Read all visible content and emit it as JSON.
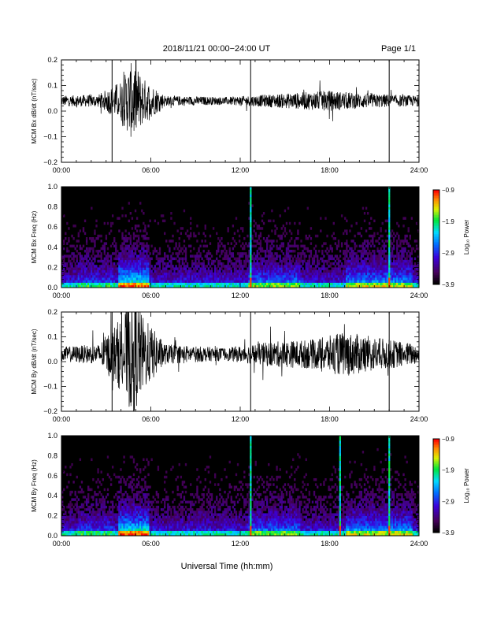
{
  "header": {
    "title": "2018/11/21  00:00−24:00 UT",
    "page": "Page 1/1"
  },
  "footer": {
    "xlabel": "Universal Time (hh:mm)"
  },
  "chart_data": [
    {
      "type": "line",
      "ylabel": "MCM Bx dB/dt (nT/sec)",
      "xlim": [
        "00:00",
        "24:00"
      ],
      "ylim": [
        -0.2,
        0.2
      ],
      "x_tick_labels": [
        "00:00",
        "06:00",
        "12:00",
        "18:00",
        "24:00"
      ],
      "y_tick_labels": [
        "0.2",
        "0.1",
        "0.0",
        "−0.1",
        "−0.2"
      ],
      "y_tick_values": [
        0.2,
        0.1,
        0.0,
        -0.1,
        -0.2
      ],
      "baseline": 0.04,
      "spikes_hours": [
        3.4,
        12.7,
        22.0
      ],
      "activity_envelope": [
        {
          "x": 0,
          "y": 0.02
        },
        {
          "x": 2.5,
          "y": 0.025
        },
        {
          "x": 4.0,
          "y": 0.08
        },
        {
          "x": 4.8,
          "y": 0.16
        },
        {
          "x": 5.5,
          "y": 0.09
        },
        {
          "x": 7.0,
          "y": 0.02
        },
        {
          "x": 11.0,
          "y": 0.015
        },
        {
          "x": 14.0,
          "y": 0.025
        },
        {
          "x": 18.0,
          "y": 0.04
        },
        {
          "x": 20.0,
          "y": 0.03
        },
        {
          "x": 24.0,
          "y": 0.02
        }
      ]
    },
    {
      "type": "heatmap",
      "ylabel": "MCM Bx Freq (Hz)",
      "xlim": [
        "00:00",
        "24:00"
      ],
      "ylim": [
        0,
        1
      ],
      "x_tick_labels": [
        "00:00",
        "06:00",
        "12:00",
        "18:00",
        "24:00"
      ],
      "y_tick_labels": [
        "1.0",
        "0.8",
        "0.6",
        "0.4",
        "0.2",
        "0.0"
      ],
      "y_tick_values": [
        1.0,
        0.8,
        0.6,
        0.4,
        0.2,
        0.0
      ],
      "colorbar_label": "Log₁₀ Power",
      "colorbar_ticks": [
        "−0.9",
        "−1.9",
        "−2.9",
        "−3.9"
      ],
      "colorbar_values": [
        -0.9,
        -1.9,
        -2.9,
        -3.9
      ],
      "broadband_lines_hours": [
        12.7,
        22.0
      ]
    },
    {
      "type": "line",
      "ylabel": "MCM By dB/dt (nT/sec)",
      "xlim": [
        "00:00",
        "24:00"
      ],
      "ylim": [
        -0.2,
        0.2
      ],
      "x_tick_labels": [
        "00:00",
        "06:00",
        "12:00",
        "18:00",
        "24:00"
      ],
      "y_tick_labels": [
        "0.2",
        "0.1",
        "0.0",
        "−0.1",
        "−0.2"
      ],
      "y_tick_values": [
        0.2,
        0.1,
        0.0,
        -0.1,
        -0.2
      ],
      "baseline": 0.03,
      "spikes_hours": [
        3.4,
        12.7,
        22.0
      ],
      "activity_envelope": [
        {
          "x": 0,
          "y": 0.03
        },
        {
          "x": 2.5,
          "y": 0.04
        },
        {
          "x": 4.0,
          "y": 0.15
        },
        {
          "x": 4.8,
          "y": 0.25
        },
        {
          "x": 5.5,
          "y": 0.15
        },
        {
          "x": 7.0,
          "y": 0.04
        },
        {
          "x": 11.0,
          "y": 0.025
        },
        {
          "x": 14.0,
          "y": 0.05
        },
        {
          "x": 17.0,
          "y": 0.06
        },
        {
          "x": 19.0,
          "y": 0.09
        },
        {
          "x": 22.0,
          "y": 0.06
        },
        {
          "x": 24.0,
          "y": 0.04
        }
      ]
    },
    {
      "type": "heatmap",
      "ylabel": "MCM By Freq (Hz)",
      "xlim": [
        "00:00",
        "24:00"
      ],
      "ylim": [
        0,
        1
      ],
      "x_tick_labels": [
        "00:00",
        "06:00",
        "12:00",
        "18:00",
        "24:00"
      ],
      "y_tick_labels": [
        "1.0",
        "0.8",
        "0.6",
        "0.4",
        "0.2",
        "0.0"
      ],
      "y_tick_values": [
        1.0,
        0.8,
        0.6,
        0.4,
        0.2,
        0.0
      ],
      "colorbar_label": "Log₁₀ Power",
      "colorbar_ticks": [
        "−0.9",
        "−1.9",
        "−2.9",
        "−3.9"
      ],
      "colorbar_values": [
        -0.9,
        -1.9,
        -2.9,
        -3.9
      ],
      "broadband_lines_hours": [
        12.7,
        18.7,
        22.0
      ]
    }
  ]
}
